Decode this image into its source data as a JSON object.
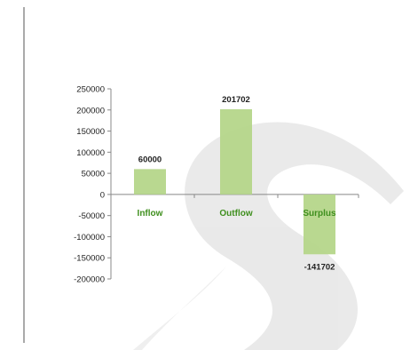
{
  "chart_data": {
    "type": "bar",
    "categories": [
      "Inflow",
      "Outflow",
      "Surplus"
    ],
    "values": [
      60000,
      201702,
      -141702
    ],
    "data_labels": [
      "60000",
      "201702",
      "-141702"
    ],
    "yticks": [
      "250000",
      "200000",
      "150000",
      "100000",
      "50000",
      "0",
      "-50000",
      "-100000",
      "-150000",
      "-200000"
    ],
    "ylim": [
      -200000,
      250000
    ],
    "title": "",
    "xlabel": "",
    "ylabel": "",
    "grid": false,
    "legend": "none",
    "bar_color": "#b5d68a",
    "category_label_color": "#3f8f1e",
    "watermark": "S"
  }
}
